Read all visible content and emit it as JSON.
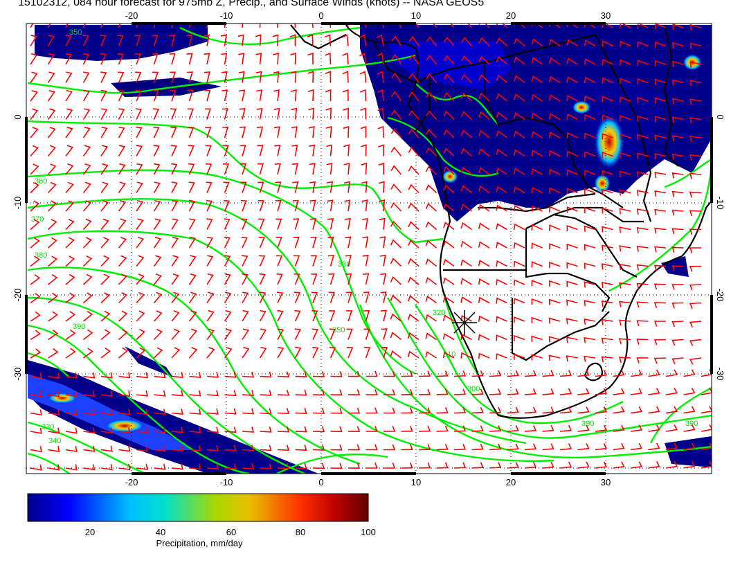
{
  "title": "15102312, 084 hour forecast for 975mb Z, Precip., and Surface Winds (knots) -- NASA GEOS5",
  "map": {
    "lon_labels": [
      "-20",
      "-10",
      "0",
      "10",
      "20",
      "30"
    ],
    "lat_labels": [
      "0",
      "-10",
      "-20",
      "-30"
    ],
    "site_marker": "×"
  },
  "contour_labels": [
    "350",
    "360",
    "370",
    "380",
    "390",
    "330",
    "340",
    "320",
    "310",
    "300"
  ],
  "colorbar": {
    "tick_labels": [
      "20",
      "40",
      "60",
      "80",
      "100"
    ],
    "label": "Precipitation, mm/day",
    "min": 0,
    "max": 100
  },
  "colors": {
    "wind_barbs": "#ff0000",
    "contours": "#00ee00",
    "precip_low": "#00008b",
    "precip_high": "#800000",
    "coastline": "#000000"
  }
}
